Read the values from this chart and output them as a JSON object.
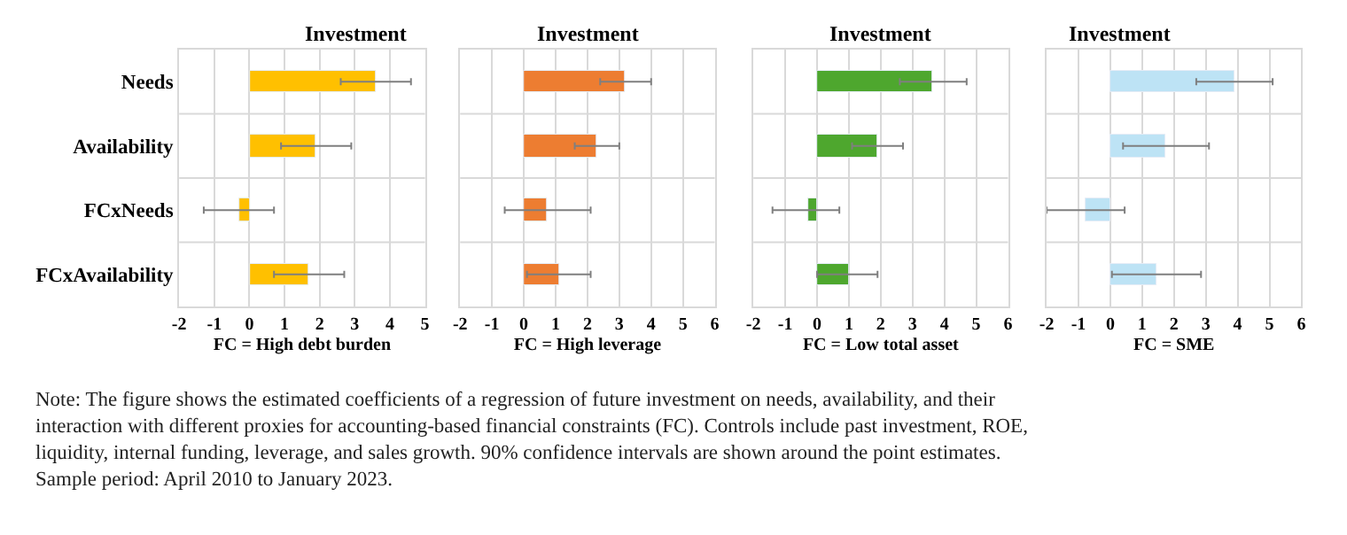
{
  "chart_data": [
    {
      "type": "bar",
      "orientation": "horizontal",
      "title": "Investment",
      "xlabel": "FC = High debt burden",
      "categories": [
        "Needs",
        "Availability",
        "FCxNeeds",
        "FCxAvailability"
      ],
      "values": [
        3.6,
        1.9,
        -0.3,
        1.7
      ],
      "errors": [
        [
          2.6,
          4.6
        ],
        [
          0.9,
          2.9
        ],
        [
          -1.3,
          0.7
        ],
        [
          0.7,
          2.7
        ]
      ],
      "color": "#ffc000",
      "xlim": [
        -2,
        5
      ],
      "xticks": [
        -2,
        -1,
        0,
        1,
        2,
        3,
        4,
        5
      ],
      "grid": true,
      "annotations": [
        "Note: The figure shows the estimated coefficients of a regression of future investment on needs, availability, and their interaction with different proxies for accounting-based financial constraints (FC). Controls include past investment, ROE, liquidity, internal funding, leverage, and sales growth. 90% confidence intervals are shown around the point estimates. Sample period: April 2010 to January 2023."
      ]
    },
    {
      "type": "bar",
      "orientation": "horizontal",
      "title": "Investment",
      "xlabel": "FC = High leverage",
      "categories": [
        null,
        null,
        null,
        null
      ],
      "values": [
        3.2,
        2.3,
        0.75,
        1.1
      ],
      "errors": [
        [
          2.4,
          4.0
        ],
        [
          1.6,
          3.0
        ],
        [
          -0.6,
          2.1
        ],
        [
          0.1,
          2.1
        ]
      ],
      "color": "#ed7d31",
      "xlim": [
        -2,
        6
      ],
      "xticks": [
        -2,
        -1,
        0,
        1,
        2,
        3,
        4,
        5,
        6
      ],
      "grid": true,
      "tick_labels": "x"
    },
    {
      "type": "bar",
      "orientation": "horizontal",
      "title": "Investment",
      "xlabel": "FC = Low total asset",
      "categories": [
        null,
        null,
        null,
        null
      ],
      "values": [
        3.65,
        1.9,
        -0.3,
        1.0
      ],
      "errors": [
        [
          2.6,
          4.7
        ],
        [
          1.1,
          2.7
        ],
        [
          -1.4,
          0.7
        ],
        [
          0.0,
          1.9
        ]
      ],
      "color": "#4ea72e",
      "xlim": [
        -2,
        6
      ],
      "xticks": [
        -2,
        -1,
        0,
        1,
        2,
        3,
        4,
        5,
        6
      ],
      "grid": true,
      "tick_labels": "x"
    },
    {
      "type": "bar",
      "orientation": "horizontal",
      "title": "Investment",
      "xlabel": "FC = SME",
      "categories": [
        null,
        null,
        null,
        null
      ],
      "values": [
        3.9,
        1.75,
        -0.75,
        1.45
      ],
      "errors": [
        [
          2.7,
          5.1
        ],
        [
          0.4,
          3.1
        ],
        [
          -2.0,
          0.45
        ],
        [
          0.05,
          2.85
        ]
      ],
      "color": "#bde3f5",
      "xlim": [
        -2,
        6
      ],
      "xticks": [
        -2,
        -1,
        0,
        1,
        2,
        3,
        4,
        5,
        6
      ],
      "grid": true,
      "tick_labels": "x"
    }
  ]
}
